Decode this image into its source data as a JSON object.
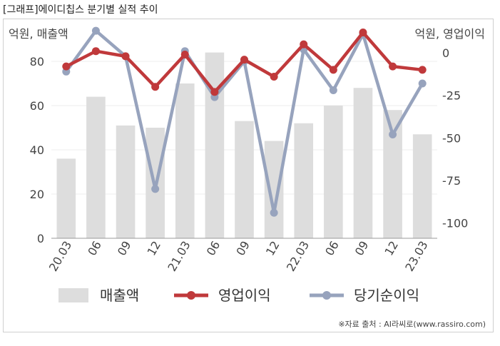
{
  "page_title": "[그래프]에이디칩스 분기별 실적 추이",
  "source": "※자료 출처 : AI라씨로(www.rassiro.com)",
  "colors": {
    "revenue": "#dddddd",
    "operating": "#c0393b",
    "net": "#97a3bd",
    "axis": "#999999",
    "grid": "#eeeeee"
  },
  "chart_data": {
    "type": "bar+line",
    "categories": [
      "20.03",
      "06",
      "09",
      "12",
      "21.03",
      "06",
      "09",
      "12",
      "22.03",
      "06",
      "09",
      "12",
      "23.03"
    ],
    "left_axis": {
      "label": "억원, 매출액",
      "ylim": [
        0,
        100
      ],
      "ticks": [
        0,
        20,
        40,
        60,
        80
      ]
    },
    "right_axis": {
      "label": "억원, 영업이익",
      "ylim": [
        -109,
        21
      ],
      "ticks": [
        0,
        -25,
        -50,
        -75,
        -100
      ]
    },
    "series": [
      {
        "name": "매출액",
        "type": "bar",
        "axis": "left",
        "values": [
          36,
          64,
          51,
          50,
          70,
          84,
          53,
          44,
          52,
          60,
          68,
          58,
          47
        ]
      },
      {
        "name": "영업이익",
        "type": "line",
        "axis": "right",
        "values": [
          -8,
          1,
          -2,
          -20,
          -1,
          -23,
          -4,
          -14,
          5,
          -10,
          12,
          -8,
          -10
        ]
      },
      {
        "name": "당기순이익",
        "type": "line",
        "axis": "right",
        "values": [
          -11,
          13,
          -2,
          -80,
          1,
          -26,
          -5,
          -94,
          2,
          -22,
          11,
          -48,
          -18
        ]
      }
    ],
    "legend_position": "bottom",
    "grid": true
  }
}
